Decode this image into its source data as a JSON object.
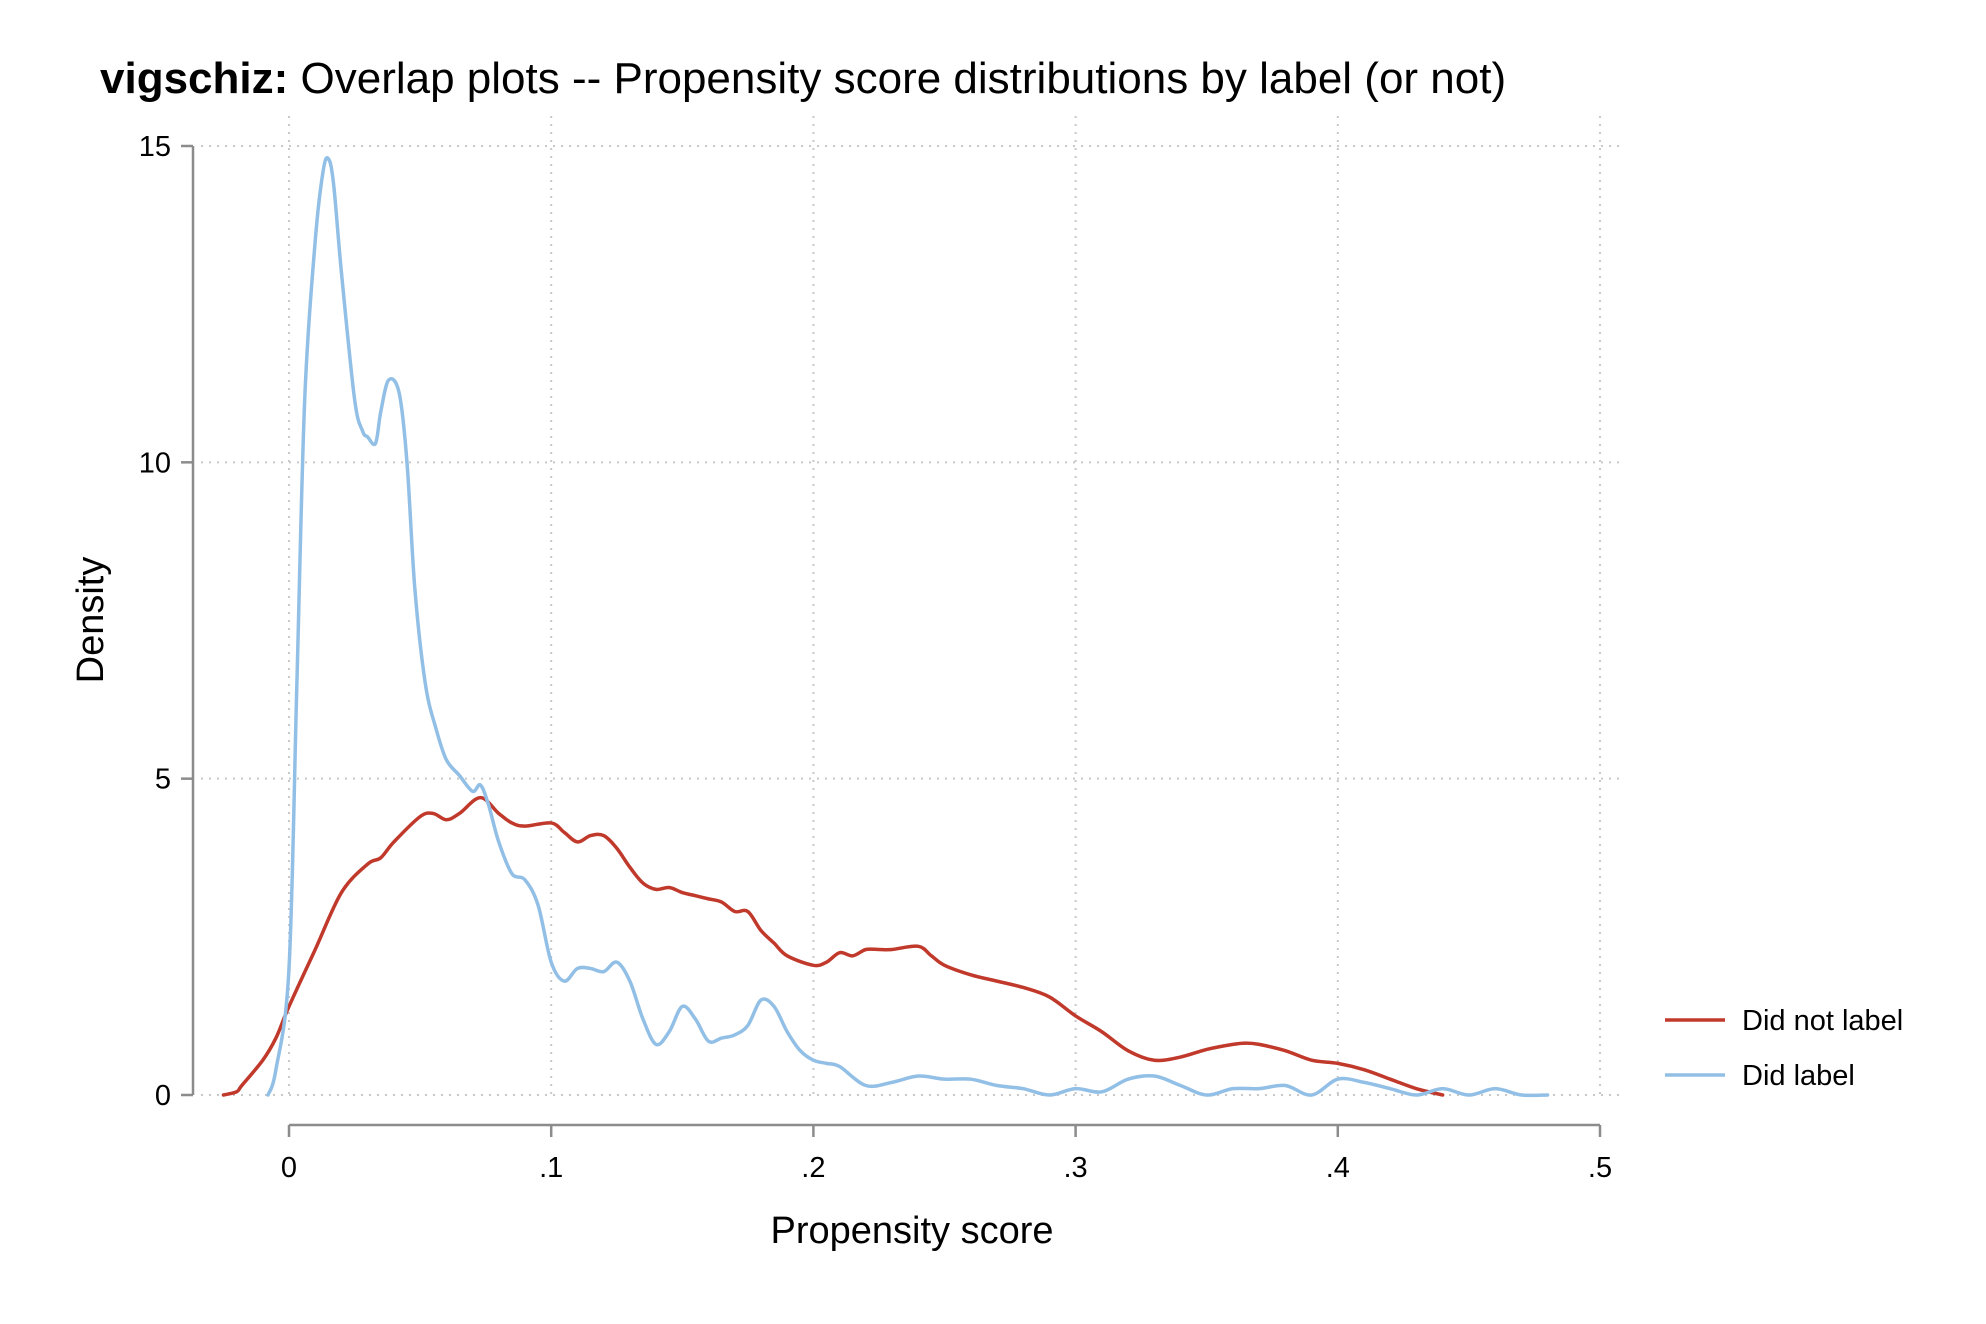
{
  "chart_data": {
    "type": "line",
    "title_bold": "vigschiz:",
    "title_rest": " Overlap plots -- Propensity score distributions by label (or not)",
    "xlabel": "Propensity score",
    "ylabel": "Density",
    "xlim": [
      -0.03,
      0.5
    ],
    "ylim": [
      0,
      15
    ],
    "xticks": [
      0,
      0.1,
      0.2,
      0.3,
      0.4,
      0.5
    ],
    "xtick_labels": [
      "0",
      ".1",
      ".2",
      ".3",
      ".4",
      ".5"
    ],
    "yticks": [
      0,
      5,
      10,
      15
    ],
    "ytick_labels": [
      "0",
      "5",
      "10",
      "15"
    ],
    "grid": true,
    "legend_position": "right",
    "series": [
      {
        "name": "Did not label",
        "color": "#c0392b",
        "x": [
          -0.025,
          -0.02,
          -0.018,
          -0.01,
          -0.005,
          0,
          0.01,
          0.02,
          0.03,
          0.035,
          0.04,
          0.05,
          0.055,
          0.06,
          0.065,
          0.073,
          0.08,
          0.085,
          0.09,
          0.1,
          0.105,
          0.11,
          0.115,
          0.12,
          0.125,
          0.13,
          0.135,
          0.14,
          0.145,
          0.15,
          0.155,
          0.16,
          0.165,
          0.17,
          0.175,
          0.18,
          0.185,
          0.19,
          0.2,
          0.205,
          0.21,
          0.215,
          0.22,
          0.225,
          0.23,
          0.24,
          0.245,
          0.25,
          0.26,
          0.27,
          0.28,
          0.29,
          0.3,
          0.31,
          0.32,
          0.33,
          0.34,
          0.35,
          0.36,
          0.365,
          0.37,
          0.38,
          0.39,
          0.4,
          0.41,
          0.42,
          0.43,
          0.44
        ],
        "values": [
          0.0,
          0.05,
          0.15,
          0.55,
          0.9,
          1.4,
          2.3,
          3.2,
          3.65,
          3.75,
          4.0,
          4.4,
          4.45,
          4.35,
          4.45,
          4.7,
          4.45,
          4.3,
          4.25,
          4.3,
          4.15,
          4.0,
          4.1,
          4.1,
          3.9,
          3.6,
          3.35,
          3.25,
          3.28,
          3.2,
          3.15,
          3.1,
          3.05,
          2.9,
          2.9,
          2.6,
          2.4,
          2.2,
          2.05,
          2.1,
          2.25,
          2.2,
          2.3,
          2.3,
          2.3,
          2.35,
          2.2,
          2.05,
          1.9,
          1.8,
          1.7,
          1.55,
          1.25,
          1.0,
          0.7,
          0.55,
          0.6,
          0.72,
          0.8,
          0.82,
          0.8,
          0.7,
          0.55,
          0.5,
          0.4,
          0.25,
          0.1,
          0.0
        ]
      },
      {
        "name": "Did label",
        "color": "#92bfe6",
        "x": [
          -0.008,
          -0.005,
          0,
          0.003,
          0.006,
          0.01,
          0.013,
          0.015,
          0.017,
          0.02,
          0.025,
          0.028,
          0.03,
          0.033,
          0.035,
          0.038,
          0.042,
          0.045,
          0.048,
          0.052,
          0.056,
          0.06,
          0.065,
          0.07,
          0.073,
          0.076,
          0.08,
          0.085,
          0.09,
          0.095,
          0.1,
          0.105,
          0.11,
          0.115,
          0.12,
          0.125,
          0.13,
          0.135,
          0.14,
          0.145,
          0.15,
          0.155,
          0.16,
          0.165,
          0.17,
          0.175,
          0.18,
          0.185,
          0.19,
          0.195,
          0.2,
          0.205,
          0.21,
          0.22,
          0.23,
          0.24,
          0.25,
          0.26,
          0.27,
          0.28,
          0.29,
          0.3,
          0.31,
          0.32,
          0.33,
          0.34,
          0.35,
          0.36,
          0.37,
          0.38,
          0.39,
          0.4,
          0.41,
          0.42,
          0.43,
          0.44,
          0.45,
          0.46,
          0.47,
          0.48
        ],
        "values": [
          0.0,
          0.4,
          2.0,
          6.5,
          11.0,
          13.5,
          14.6,
          14.8,
          14.4,
          13.0,
          11.0,
          10.5,
          10.4,
          10.3,
          10.8,
          11.3,
          11.1,
          10.0,
          8.0,
          6.5,
          5.8,
          5.3,
          5.05,
          4.8,
          4.9,
          4.6,
          4.0,
          3.5,
          3.4,
          3.0,
          2.1,
          1.8,
          2.0,
          2.0,
          1.95,
          2.1,
          1.8,
          1.2,
          0.8,
          1.0,
          1.4,
          1.2,
          0.85,
          0.9,
          0.95,
          1.1,
          1.5,
          1.4,
          1.0,
          0.7,
          0.55,
          0.5,
          0.45,
          0.15,
          0.2,
          0.3,
          0.25,
          0.25,
          0.15,
          0.1,
          0.0,
          0.1,
          0.05,
          0.25,
          0.3,
          0.15,
          0.0,
          0.1,
          0.1,
          0.15,
          0.0,
          0.25,
          0.2,
          0.1,
          0.0,
          0.1,
          0.0,
          0.1,
          0.0,
          0.0
        ]
      }
    ]
  }
}
